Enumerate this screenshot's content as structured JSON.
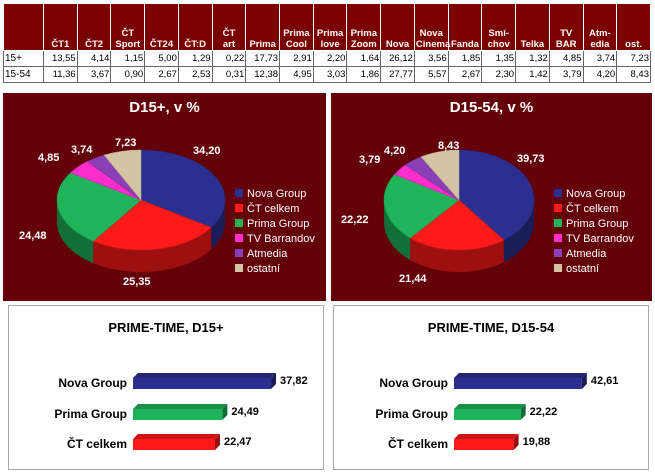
{
  "table": {
    "columns": [
      "ČT1",
      "ČT2",
      "ČT\nSport",
      "ČT24",
      "ČT:D",
      "ČT\nart",
      "Prima",
      "Prima\nCool",
      "Prima\nlove",
      "Prima\nZoom",
      "Nova",
      "Nova\nCinema",
      "Fanda",
      "Smí-\nchov",
      "Telka",
      "TV\nBAR",
      "Atm-\nedia",
      "ost."
    ],
    "rows": [
      {
        "label": "15+",
        "values": [
          "13,55",
          "4,14",
          "1,15",
          "5,00",
          "1,29",
          "0,22",
          "17,73",
          "2,91",
          "2,20",
          "1,64",
          "26,12",
          "3,56",
          "1,85",
          "1,35",
          "1,32",
          "4,85",
          "3,74",
          "7,23"
        ]
      },
      {
        "label": "15-54",
        "values": [
          "11,36",
          "3,67",
          "0,90",
          "2,67",
          "2,53",
          "0,31",
          "12,38",
          "4,95",
          "3,03",
          "1,86",
          "27,77",
          "5,57",
          "2,67",
          "2,30",
          "1,42",
          "3,79",
          "4,20",
          "8,43"
        ]
      }
    ]
  },
  "colors": {
    "nova": "#2b2f8f",
    "ct": "#ff1a1a",
    "prima": "#1fb35a",
    "tvb": "#ff2dcc",
    "atmedia": "#8a3fb5",
    "ostatni": "#d4c4a4",
    "panel": "#640008",
    "header": "#7a0000"
  },
  "pies": [
    {
      "title": "D15+, v %",
      "legend": [
        "Nova Group",
        "ČT celkem",
        "Prima Group",
        "TV Barrandov",
        "Atmedia",
        "ostatní"
      ],
      "labels": [
        "34,20",
        "25,35",
        "24,48",
        "4,85",
        "3,74",
        "7,23"
      ]
    },
    {
      "title": "D15-54, v %",
      "legend": [
        "Nova Group",
        "ČT celkem",
        "Prima Group",
        "TV Barrandov",
        "Atmedia",
        "ostatní"
      ],
      "labels": [
        "39,73",
        "21,44",
        "22,22",
        "3,79",
        "4,20",
        "8,43"
      ]
    }
  ],
  "prime": [
    {
      "title": "PRIME-TIME, D15+",
      "categories": [
        "Nova Group",
        "Prima Group",
        "ČT celkem"
      ],
      "labels": [
        "37,82",
        "24,49",
        "22,47"
      ]
    },
    {
      "title": "PRIME-TIME, D15-54",
      "categories": [
        "Nova Group",
        "Prima Group",
        "ČT celkem"
      ],
      "labels": [
        "42,61",
        "22,22",
        "19,88"
      ]
    }
  ],
  "chart_data": [
    {
      "type": "table",
      "columns": [
        "ČT1",
        "ČT2",
        "ČT Sport",
        "ČT24",
        "ČT:D",
        "ČT art",
        "Prima",
        "Prima Cool",
        "Prima love",
        "Prima Zoom",
        "Nova",
        "Nova Cinema",
        "Fanda",
        "Smíchov",
        "Telka",
        "TV BAR",
        "Atmedia",
        "ost."
      ],
      "rows": [
        {
          "label": "15+",
          "values": [
            13.55,
            4.14,
            1.15,
            5.0,
            1.29,
            0.22,
            17.73,
            2.91,
            2.2,
            1.64,
            26.12,
            3.56,
            1.85,
            1.35,
            1.32,
            4.85,
            3.74,
            7.23
          ]
        },
        {
          "label": "15-54",
          "values": [
            11.36,
            3.67,
            0.9,
            2.67,
            2.53,
            0.31,
            12.38,
            4.95,
            3.03,
            1.86,
            27.77,
            5.57,
            2.67,
            2.3,
            1.42,
            3.79,
            4.2,
            8.43
          ]
        }
      ]
    },
    {
      "type": "pie",
      "title": "D15+, v %",
      "categories": [
        "Nova Group",
        "ČT celkem",
        "Prima Group",
        "TV Barrandov",
        "Atmedia",
        "ostatní"
      ],
      "values": [
        34.2,
        25.35,
        24.48,
        4.85,
        3.74,
        7.23
      ],
      "legend": "right"
    },
    {
      "type": "pie",
      "title": "D15-54, v %",
      "categories": [
        "Nova Group",
        "ČT celkem",
        "Prima Group",
        "TV Barrandov",
        "Atmedia",
        "ostatní"
      ],
      "values": [
        39.73,
        21.44,
        22.22,
        3.79,
        4.2,
        8.43
      ],
      "legend": "right"
    },
    {
      "type": "bar",
      "title": "PRIME-TIME, D15+",
      "categories": [
        "Nova Group",
        "Prima Group",
        "ČT celkem"
      ],
      "values": [
        37.82,
        24.49,
        22.47
      ],
      "orientation": "horizontal"
    },
    {
      "type": "bar",
      "title": "PRIME-TIME, D15-54",
      "categories": [
        "Nova Group",
        "Prima Group",
        "ČT celkem"
      ],
      "values": [
        42.61,
        22.22,
        19.88
      ],
      "orientation": "horizontal"
    }
  ]
}
